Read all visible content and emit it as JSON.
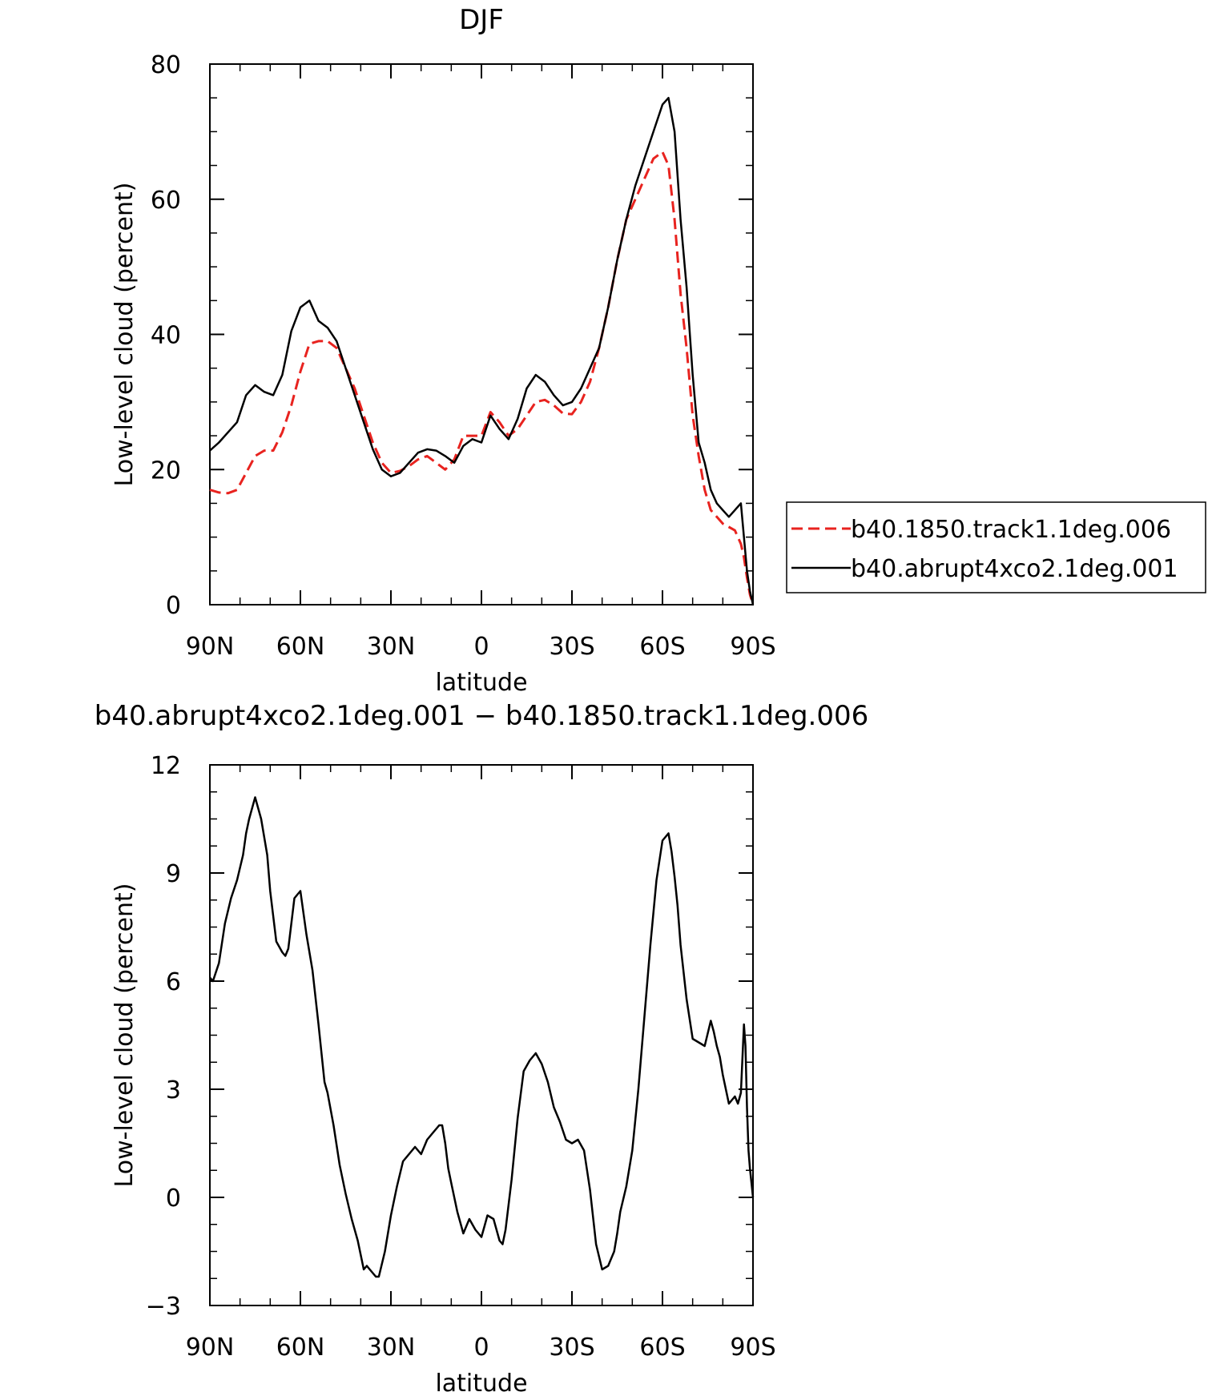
{
  "chart_data": [
    {
      "type": "line",
      "title": "DJF",
      "xlabel": "latitude",
      "ylabel": "Low-level cloud (percent)",
      "xlim": [
        -90,
        90
      ],
      "ylim": [
        0,
        80
      ],
      "x_ticks": [
        -90,
        -60,
        -30,
        0,
        30,
        60,
        90
      ],
      "x_tick_labels": [
        "90N",
        "60N",
        "30N",
        "0",
        "30S",
        "60S",
        "90S"
      ],
      "y_ticks": [
        0,
        20,
        40,
        60,
        80
      ],
      "y_tick_labels": [
        "0",
        "20",
        "40",
        "60",
        "80"
      ],
      "legend_position": "right",
      "series": [
        {
          "name": "b40.1850.track1.1deg.006",
          "color": "#e8231f",
          "dash": "dashed",
          "x": [
            -90,
            -87,
            -84,
            -81,
            -78,
            -75,
            -72,
            -69,
            -66,
            -63,
            -60,
            -57,
            -54,
            -51,
            -48,
            -45,
            -42,
            -39,
            -36,
            -33,
            -30,
            -27,
            -24,
            -21,
            -18,
            -15,
            -12,
            -9,
            -6,
            -3,
            0,
            3,
            6,
            9,
            12,
            15,
            18,
            21,
            24,
            27,
            30,
            33,
            36,
            39,
            42,
            45,
            48,
            51,
            54,
            57,
            60,
            62,
            64,
            66,
            68,
            70,
            72,
            74,
            76,
            78,
            80,
            82,
            84,
            86,
            87,
            88,
            89,
            90
          ],
          "y": [
            17,
            16.6,
            16.5,
            17,
            19.5,
            22,
            22.8,
            22.8,
            25.5,
            29.5,
            34.5,
            38.6,
            39,
            39,
            38,
            35,
            32,
            28,
            24,
            21,
            19.5,
            19.8,
            20.5,
            21.5,
            22,
            21,
            20,
            21.5,
            25,
            25,
            25,
            28.5,
            27,
            25,
            26,
            28,
            30,
            30.3,
            29.5,
            28.3,
            28.2,
            30,
            33,
            38,
            44,
            51,
            57,
            60,
            63,
            66,
            67,
            65,
            57,
            46,
            38,
            28,
            22,
            17,
            14,
            13,
            12,
            11.5,
            11,
            9,
            7,
            4,
            1.5,
            0
          ]
        },
        {
          "name": "b40.abrupt4xco2.1deg.001",
          "color": "#000000",
          "dash": "solid",
          "x": [
            -90,
            -87,
            -84,
            -81,
            -78,
            -75,
            -72,
            -69,
            -66,
            -63,
            -60,
            -57,
            -54,
            -51,
            -48,
            -45,
            -42,
            -39,
            -36,
            -33,
            -30,
            -27,
            -24,
            -21,
            -18,
            -15,
            -12,
            -9,
            -6,
            -3,
            0,
            3,
            6,
            9,
            12,
            15,
            18,
            21,
            24,
            27,
            30,
            33,
            36,
            39,
            42,
            45,
            48,
            51,
            54,
            57,
            60,
            62,
            64,
            66,
            68,
            70,
            72,
            74,
            76,
            78,
            80,
            82,
            84,
            86,
            87,
            88,
            89,
            90
          ],
          "y": [
            22.8,
            24,
            25.5,
            27,
            31,
            32.5,
            31.5,
            31,
            34,
            40.5,
            44,
            45,
            42,
            41,
            39,
            35,
            31,
            27,
            23,
            20,
            19,
            19.5,
            21,
            22.5,
            23,
            22.8,
            22,
            21,
            23.5,
            24.5,
            24,
            28,
            26,
            24.5,
            27.5,
            32,
            34,
            33,
            31,
            29.5,
            30,
            32,
            35,
            38,
            44,
            51,
            57,
            62,
            66,
            70,
            74,
            75,
            70,
            57,
            47,
            34,
            24,
            21,
            17,
            15,
            14,
            13,
            14,
            15,
            10,
            5,
            2,
            0
          ]
        }
      ]
    },
    {
      "type": "line",
      "title": "b40.abrupt4xco2.1deg.001 − b40.1850.track1.1deg.006",
      "xlabel": "latitude",
      "ylabel": "Low-level cloud (percent)",
      "xlim": [
        -90,
        90
      ],
      "ylim": [
        -3,
        12
      ],
      "x_ticks": [
        -90,
        -60,
        -30,
        0,
        30,
        60,
        90
      ],
      "x_tick_labels": [
        "90N",
        "60N",
        "30N",
        "0",
        "30S",
        "60S",
        "90S"
      ],
      "y_ticks": [
        -3,
        0,
        3,
        6,
        9,
        12
      ],
      "y_tick_labels": [
        "−3",
        "0",
        "3",
        "6",
        "9",
        "12"
      ],
      "series": [
        {
          "color": "#000000",
          "dash": "solid",
          "x": [
            -90,
            -89,
            -87,
            -85,
            -83,
            -81,
            -79,
            -78,
            -77,
            -75,
            -73,
            -71,
            -70,
            -68,
            -66,
            -65,
            -64,
            -62,
            -61,
            -60,
            -58,
            -56,
            -54,
            -52,
            -51,
            -49,
            -47,
            -45,
            -43,
            -41,
            -39,
            -38,
            -37,
            -36,
            -35,
            -34,
            -32,
            -30,
            -28,
            -26,
            -24,
            -22,
            -20,
            -18,
            -16,
            -14,
            -13,
            -12,
            -11,
            -10,
            -8,
            -6,
            -4,
            -2,
            0,
            1,
            2,
            4,
            6,
            7,
            8,
            10,
            12,
            14,
            16,
            18,
            20,
            22,
            24,
            26,
            28,
            30,
            32,
            34,
            36,
            38,
            40,
            42,
            44,
            45,
            46,
            48,
            50,
            52,
            54,
            56,
            58,
            60,
            62,
            63,
            64,
            65,
            66,
            68,
            70,
            72,
            74,
            76,
            77,
            78,
            79,
            80,
            82,
            84,
            85,
            86,
            87,
            87.5,
            88,
            88.5,
            89,
            89.5,
            90
          ],
          "y": [
            6.1,
            6,
            6.5,
            7.6,
            8.3,
            8.8,
            9.5,
            10.1,
            10.5,
            11.1,
            10.5,
            9.5,
            8.5,
            7.1,
            6.8,
            6.7,
            6.9,
            8.3,
            8.4,
            8.5,
            7.3,
            6.3,
            4.8,
            3.2,
            2.9,
            2,
            0.9,
            0.1,
            -0.6,
            -1.2,
            -2,
            -1.9,
            -2,
            -2.1,
            -2.2,
            -2.2,
            -1.5,
            -0.5,
            0.3,
            1,
            1.2,
            1.4,
            1.2,
            1.6,
            1.8,
            2,
            2,
            1.5,
            0.8,
            0.4,
            -0.4,
            -1,
            -0.6,
            -0.9,
            -1.1,
            -0.8,
            -0.5,
            -0.6,
            -1.2,
            -1.3,
            -0.9,
            0.5,
            2.2,
            3.5,
            3.8,
            4,
            3.7,
            3.2,
            2.5,
            2.1,
            1.6,
            1.5,
            1.6,
            1.3,
            0.2,
            -1.3,
            -2,
            -1.9,
            -1.5,
            -1,
            -0.4,
            0.3,
            1.3,
            3,
            5,
            7,
            8.8,
            9.9,
            10.1,
            9.6,
            8.9,
            8.1,
            7,
            5.5,
            4.4,
            4.3,
            4.2,
            4.9,
            4.6,
            4.2,
            3.9,
            3.4,
            2.6,
            2.8,
            2.6,
            2.9,
            4.8,
            4.2,
            2.5,
            1.3,
            0.8,
            0.4,
            0
          ]
        }
      ]
    }
  ],
  "legend": {
    "items": [
      {
        "label": "b40.1850.track1.1deg.006"
      },
      {
        "label": "b40.abrupt4xco2.1deg.001"
      }
    ]
  }
}
